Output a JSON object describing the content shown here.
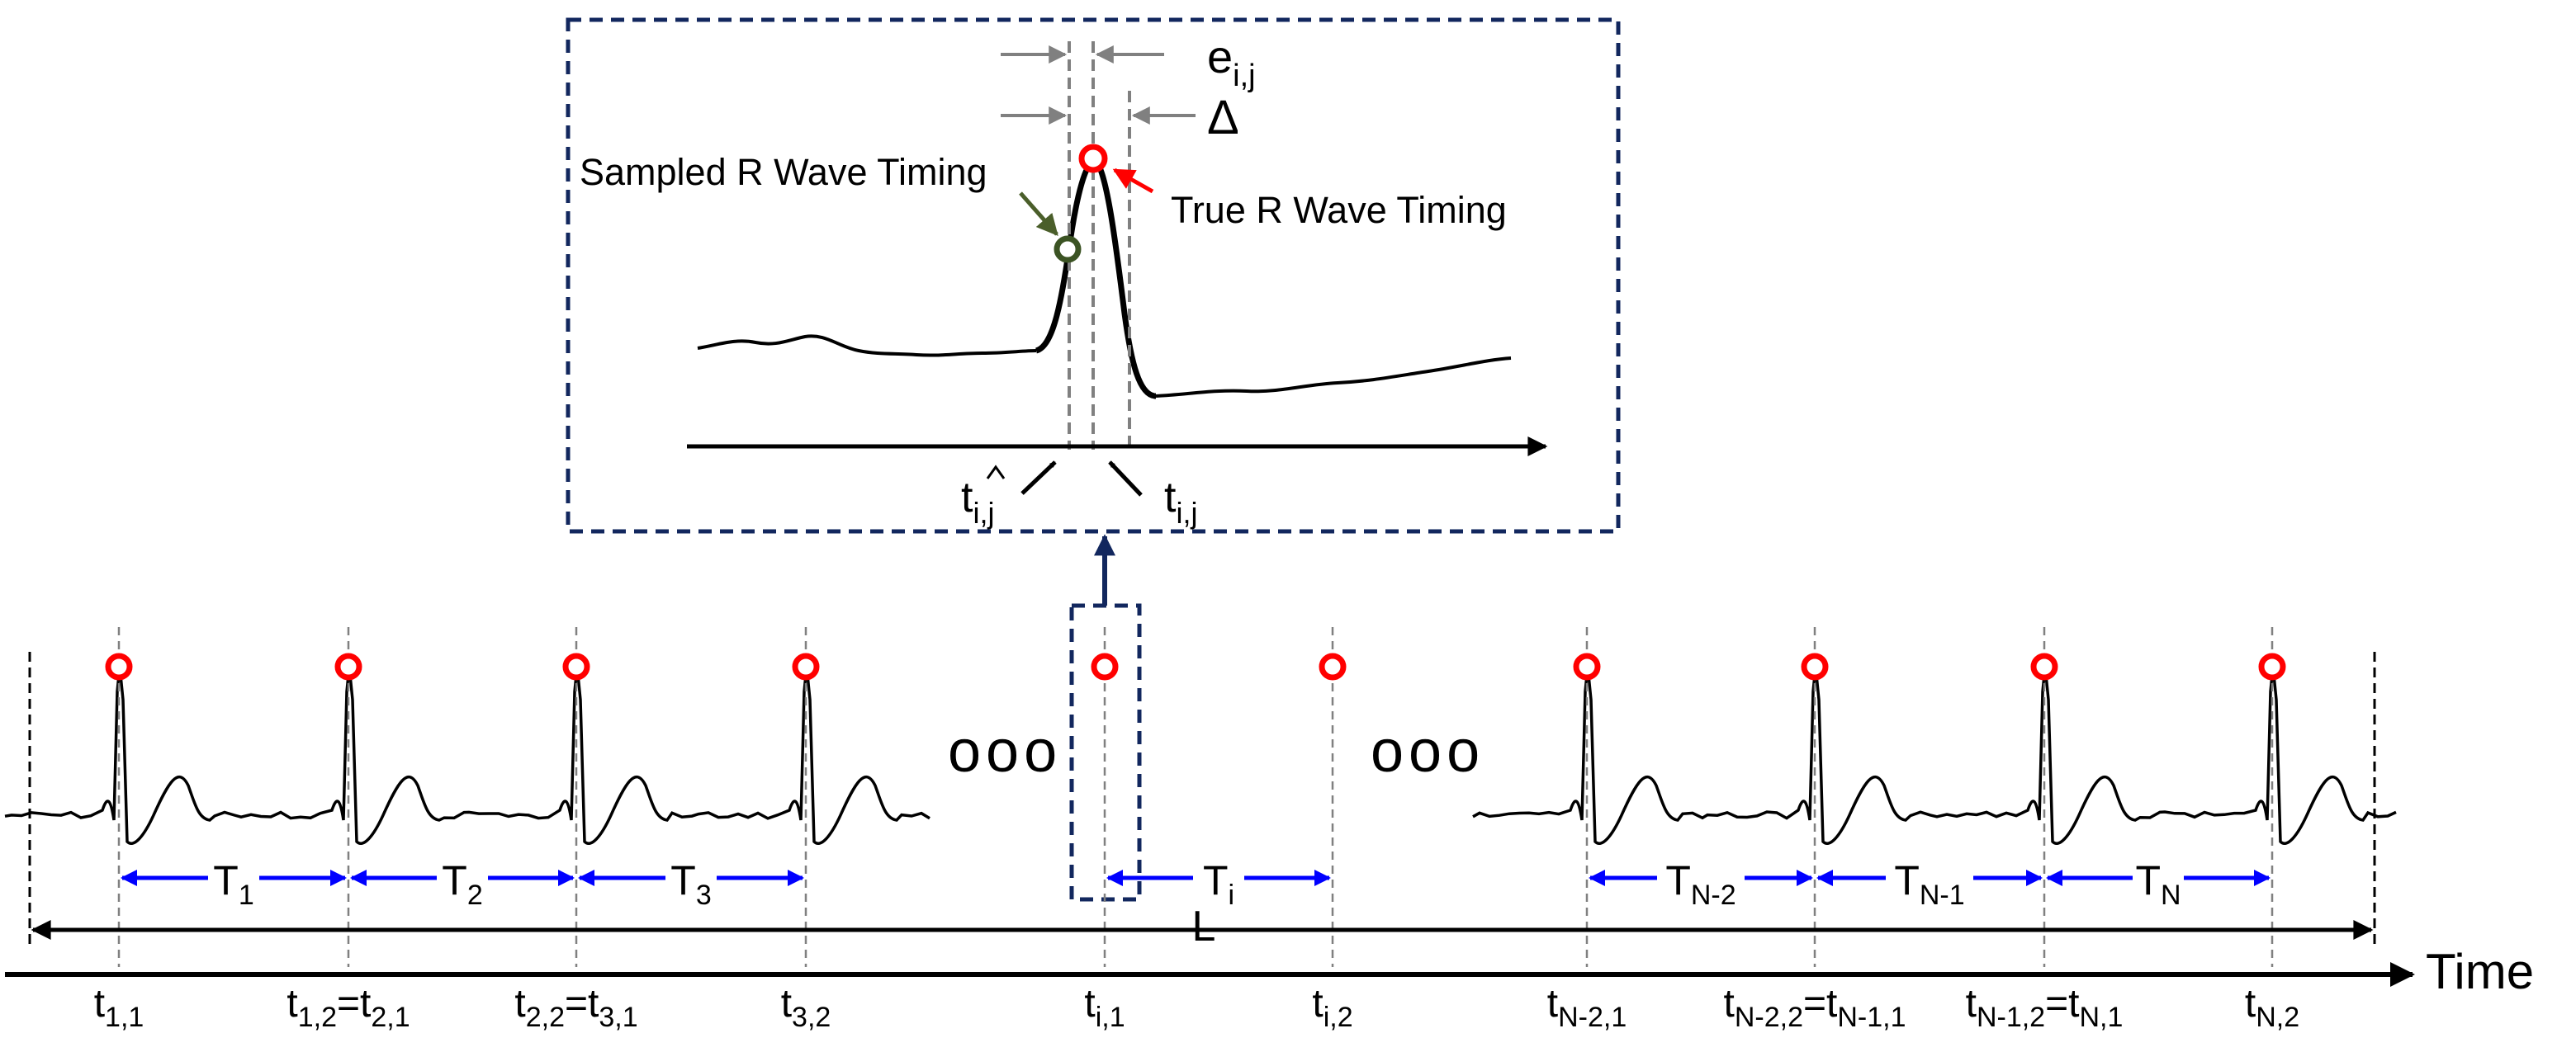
{
  "colors": {
    "ink": "#000000",
    "peak_marker": "#ff0000",
    "sampled_marker": "#3b5323",
    "sampled_arrow": "#4a5e2a",
    "interval_arrow": "#0000ff",
    "callout_frame": "#12275e",
    "dimension_gray": "#808080",
    "guide_gray": "#808080"
  },
  "inset": {
    "labels": {
      "sampled": "Sampled R Wave Timing",
      "true": "True R Wave Timing",
      "error_main": "e",
      "error_sub": "i,j",
      "delta": "Δ",
      "t_hat_main": "t",
      "t_hat_sub": "i,j",
      "t_main": "t",
      "t_sub": "i,j"
    }
  },
  "timeline": {
    "axis_label": "Time",
    "span_label": "L",
    "ellipsis_left": "ooo",
    "ellipsis_right": "ooo",
    "beat_times": [
      {
        "main": "t",
        "sub": "1,1"
      },
      {
        "main": "t",
        "sub": "1,2",
        "eq_main": "t",
        "eq_sub": "2,1"
      },
      {
        "main": "t",
        "sub": "2,2",
        "eq_main": "t",
        "eq_sub": "3,1"
      },
      {
        "main": "t",
        "sub": "3,2"
      },
      {
        "main": "t",
        "sub": "i,1"
      },
      {
        "main": "t",
        "sub": "i,2"
      },
      {
        "main": "t",
        "sub": "N-2,1"
      },
      {
        "main": "t",
        "sub": "N-2,2",
        "eq_main": "t",
        "eq_sub": "N-1,1"
      },
      {
        "main": "t",
        "sub": "N-1,2",
        "eq_main": "t",
        "eq_sub": "N,1"
      },
      {
        "main": "t",
        "sub": "N,2"
      }
    ],
    "intervals": [
      {
        "main": "T",
        "sub": "1"
      },
      {
        "main": "T",
        "sub": "2"
      },
      {
        "main": "T",
        "sub": "3"
      },
      {
        "main": "T",
        "sub": "i"
      },
      {
        "main": "T",
        "sub": "N-2"
      },
      {
        "main": "T",
        "sub": "N-1"
      },
      {
        "main": "T",
        "sub": "N"
      }
    ]
  }
}
